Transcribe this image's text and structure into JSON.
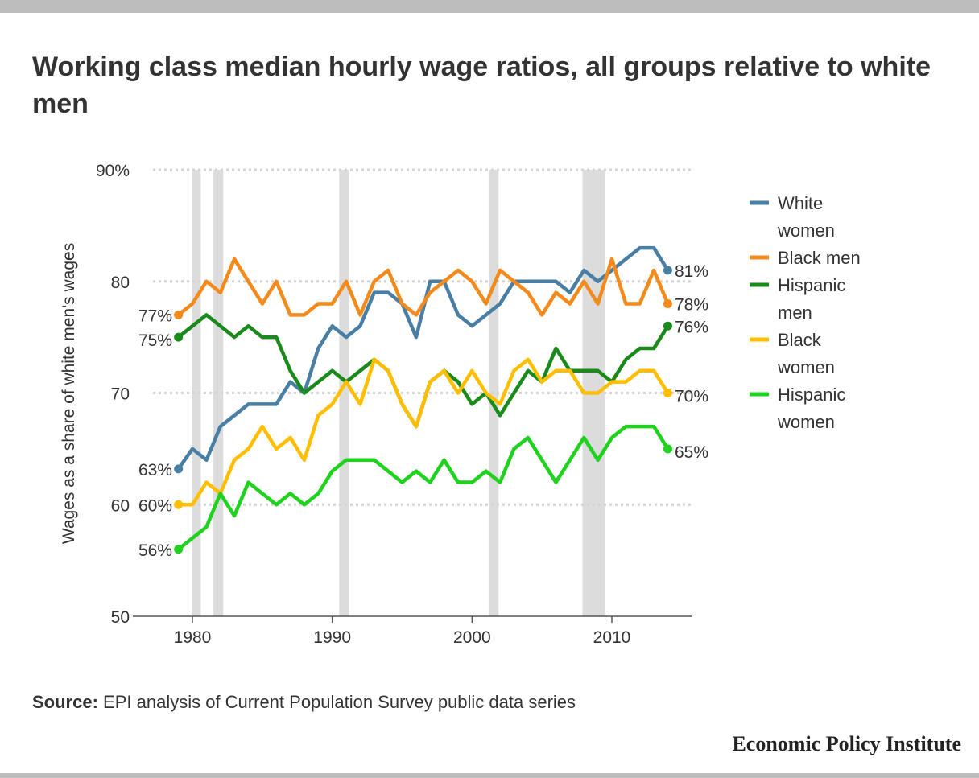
{
  "title": "Working class median hourly wage ratios, all groups relative to white men",
  "source": {
    "label": "Source:",
    "text": "EPI analysis of Current Population Survey public data series"
  },
  "brand": "Economic Policy Institute",
  "chart_data": {
    "type": "line",
    "title": "Working class median hourly wage ratios, all groups relative to white men",
    "xlabel": "",
    "ylabel": "Wages as a share of white men's wages",
    "xlim": [
      1978,
      2016
    ],
    "ylim": [
      50,
      90
    ],
    "x_ticks": [
      1980,
      1990,
      2000,
      2010
    ],
    "y_ticks": [
      {
        "value": 50,
        "label": "50"
      },
      {
        "value": 60,
        "label": "60"
      },
      {
        "value": 70,
        "label": "70"
      },
      {
        "value": 80,
        "label": "80"
      },
      {
        "value": 90,
        "label": "90%"
      }
    ],
    "grid": true,
    "legend_position": "right",
    "recessions": [
      [
        1980.0,
        1980.6
      ],
      [
        1981.5,
        1982.2
      ],
      [
        1990.5,
        1991.2
      ],
      [
        2001.2,
        2001.9
      ],
      [
        2007.9,
        2009.5
      ]
    ],
    "x": [
      1979,
      1980,
      1981,
      1982,
      1983,
      1984,
      1985,
      1986,
      1987,
      1988,
      1989,
      1990,
      1991,
      1992,
      1993,
      1994,
      1995,
      1996,
      1997,
      1998,
      1999,
      2000,
      2001,
      2002,
      2003,
      2004,
      2005,
      2006,
      2007,
      2008,
      2009,
      2010,
      2011,
      2012,
      2013,
      2014
    ],
    "series": [
      {
        "name": "White women",
        "color": "#4a7fa5",
        "start_label": "63%",
        "end_label": "81%",
        "values": [
          63.2,
          65,
          64,
          67,
          68,
          69,
          69,
          69,
          71,
          70,
          74,
          76,
          75,
          76,
          79,
          79,
          78,
          75,
          80,
          80,
          77,
          76,
          77,
          78,
          80,
          80,
          80,
          80,
          79,
          81,
          80,
          81,
          82,
          83,
          83,
          81
        ]
      },
      {
        "name": "Black men",
        "color": "#f28b1c",
        "start_label": "77%",
        "end_label": "78%",
        "values": [
          77,
          78,
          80,
          79,
          82,
          80,
          78,
          80,
          77,
          77,
          78,
          78,
          80,
          77,
          80,
          81,
          78,
          77,
          79,
          80,
          81,
          80,
          78,
          81,
          80,
          79,
          77,
          79,
          78,
          80,
          78,
          82,
          78,
          78,
          81,
          78
        ]
      },
      {
        "name": "Hispanic men",
        "color": "#1a8a1a",
        "start_label": "75%",
        "end_label": "76%",
        "values": [
          75,
          76,
          77,
          76,
          75,
          76,
          75,
          75,
          72,
          70,
          71,
          72,
          71,
          72,
          73,
          72,
          69,
          67,
          71,
          72,
          71,
          69,
          70,
          68,
          70,
          72,
          71,
          74,
          72,
          72,
          72,
          71,
          73,
          74,
          74,
          76
        ]
      },
      {
        "name": "Black women",
        "color": "#ffbf00",
        "start_label": "60%",
        "end_label": "70%",
        "values": [
          60,
          60,
          62,
          61,
          64,
          65,
          67,
          65,
          66,
          64,
          68,
          69,
          71,
          69,
          73,
          72,
          69,
          67,
          71,
          72,
          70,
          72,
          70,
          69,
          72,
          73,
          71,
          72,
          72,
          70,
          70,
          71,
          71,
          72,
          72,
          70
        ]
      },
      {
        "name": "Hispanic women",
        "color": "#1ed21e",
        "start_label": "56%",
        "end_label": "65%",
        "values": [
          56,
          57,
          58,
          61,
          59,
          62,
          61,
          60,
          61,
          60,
          61,
          63,
          64,
          64,
          64,
          63,
          62,
          63,
          62,
          64,
          62,
          62,
          63,
          62,
          65,
          66,
          64,
          62,
          64,
          66,
          64,
          66,
          67,
          67,
          67,
          65
        ]
      }
    ],
    "legend": [
      {
        "lines": [
          "White",
          "women"
        ],
        "color": "#4a7fa5"
      },
      {
        "lines": [
          "Black men"
        ],
        "color": "#f28b1c"
      },
      {
        "lines": [
          "Hispanic",
          "men"
        ],
        "color": "#1a8a1a"
      },
      {
        "lines": [
          "Black",
          "women"
        ],
        "color": "#ffbf00"
      },
      {
        "lines": [
          "Hispanic",
          "women"
        ],
        "color": "#1ed21e"
      }
    ]
  }
}
